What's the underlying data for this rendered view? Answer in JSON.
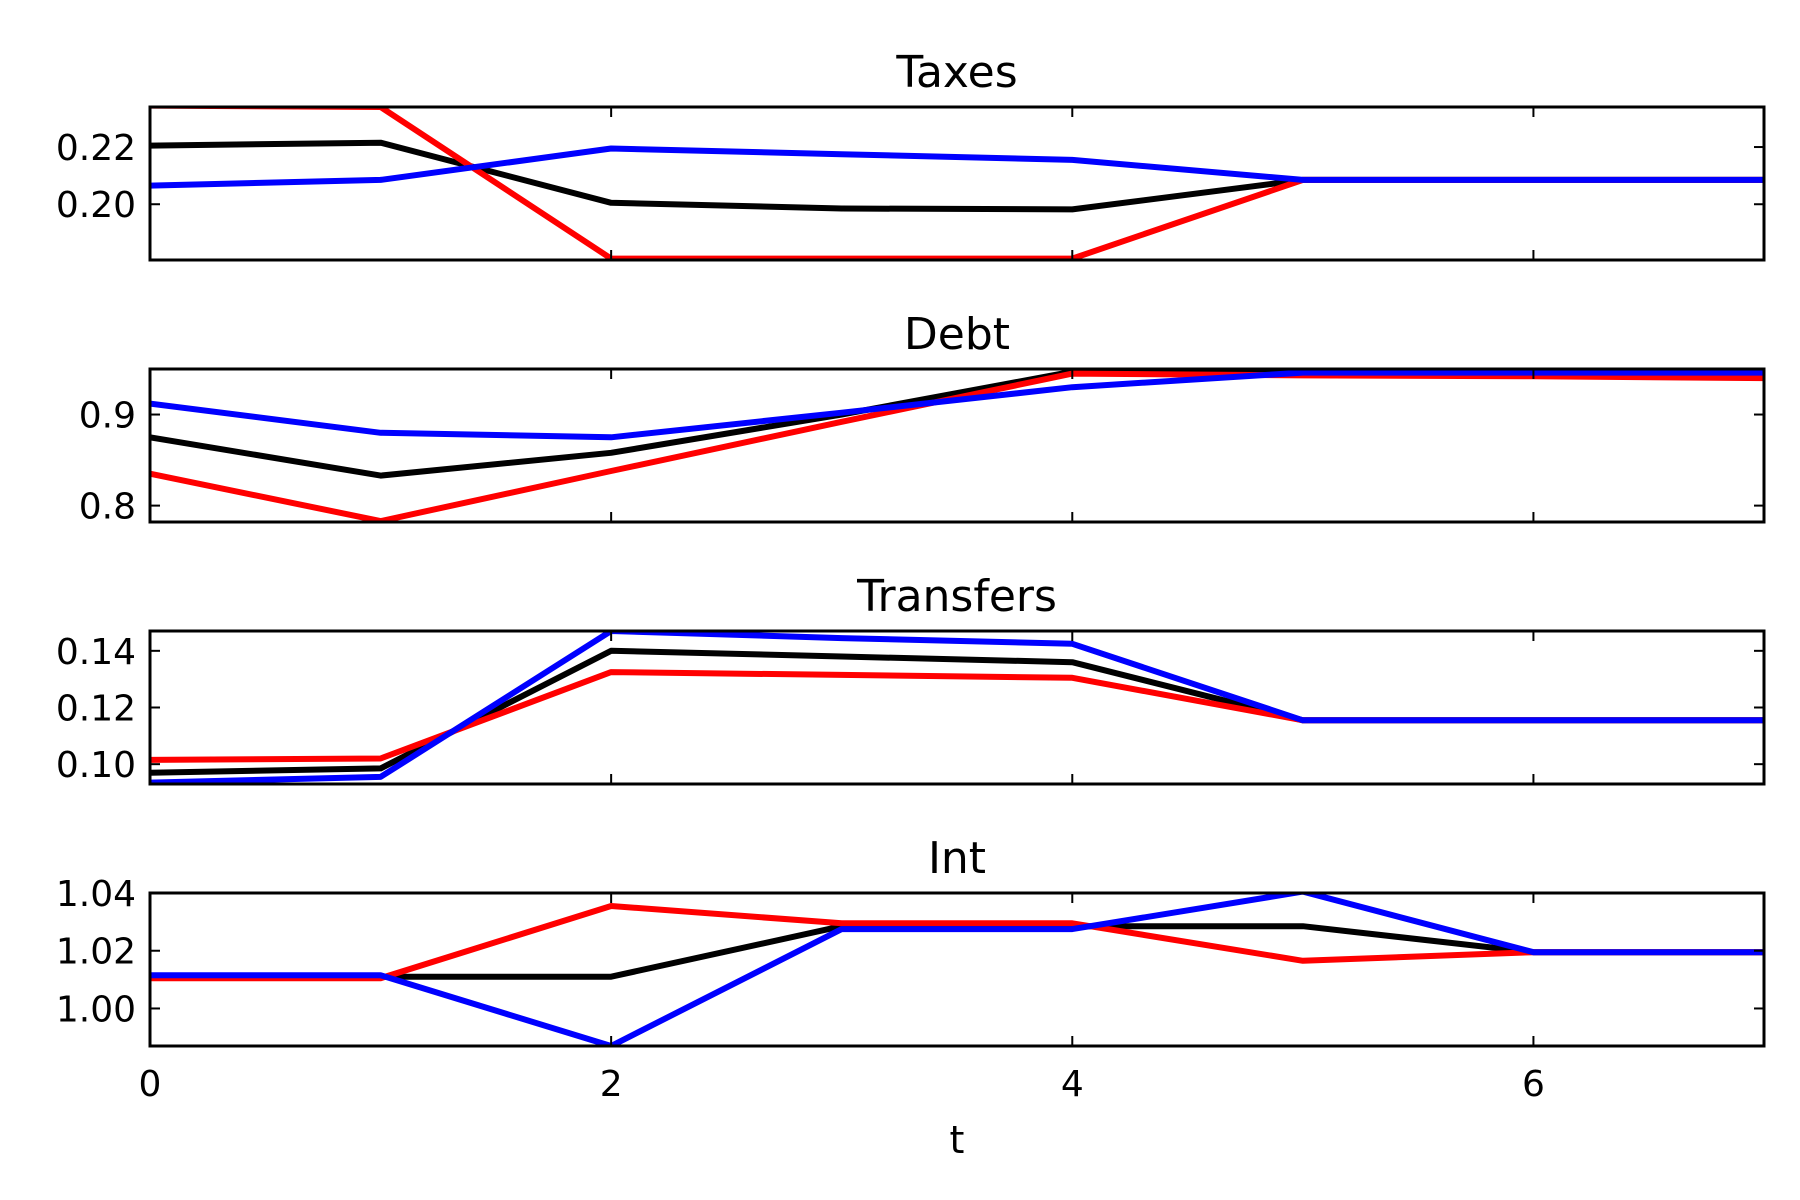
{
  "chart_data": [
    {
      "type": "line",
      "title": "Taxes",
      "x": [
        0,
        1,
        2,
        3,
        4,
        5,
        6,
        7
      ],
      "xlim": [
        0,
        7
      ],
      "ylim": [
        0.1805,
        0.234
      ],
      "yticks": [
        0.2,
        0.22
      ],
      "ytick_labels": [
        "0.20",
        "0.22"
      ],
      "xticks": [
        0,
        2,
        4,
        6
      ],
      "grid": false,
      "series": [
        {
          "color": "#000000",
          "values": [
            0.2205,
            0.2215,
            0.2005,
            0.1985,
            0.1982,
            0.2085,
            0.2085,
            0.2085
          ]
        },
        {
          "color": "#ff0000",
          "values": [
            0.2345,
            0.234,
            0.181,
            0.181,
            0.181,
            0.2085,
            0.2085,
            0.2085
          ]
        },
        {
          "color": "#0000ff",
          "values": [
            0.2065,
            0.2085,
            0.2195,
            0.2175,
            0.2155,
            0.2085,
            0.2085,
            0.2085
          ]
        }
      ]
    },
    {
      "type": "line",
      "title": "Debt",
      "x": [
        0,
        1,
        2,
        3,
        4,
        5,
        6,
        7
      ],
      "xlim": [
        0,
        7
      ],
      "ylim": [
        0.782,
        0.95
      ],
      "yticks": [
        0.8,
        0.9
      ],
      "ytick_labels": [
        "0.8",
        "0.9"
      ],
      "xticks": [
        0,
        2,
        4,
        6
      ],
      "grid": false,
      "series": [
        {
          "color": "#000000",
          "values": [
            0.875,
            0.833,
            0.858,
            0.9,
            0.947,
            0.947,
            0.947,
            0.947
          ]
        },
        {
          "color": "#ff0000",
          "values": [
            0.835,
            0.783,
            0.838,
            0.892,
            0.945,
            0.943,
            0.942,
            0.94
          ]
        },
        {
          "color": "#0000ff",
          "values": [
            0.912,
            0.88,
            0.875,
            0.902,
            0.93,
            0.946,
            0.946,
            0.946
          ]
        }
      ]
    },
    {
      "type": "line",
      "title": "Transfers",
      "x": [
        0,
        1,
        2,
        3,
        4,
        5,
        6,
        7
      ],
      "xlim": [
        0,
        7
      ],
      "ylim": [
        0.093,
        0.147
      ],
      "yticks": [
        0.1,
        0.12,
        0.14
      ],
      "ytick_labels": [
        "0.10",
        "0.12",
        "0.14"
      ],
      "xticks": [
        0,
        2,
        4,
        6
      ],
      "grid": false,
      "series": [
        {
          "color": "#000000",
          "values": [
            0.097,
            0.0985,
            0.14,
            0.138,
            0.136,
            0.1155,
            0.1155,
            0.1155
          ]
        },
        {
          "color": "#ff0000",
          "values": [
            0.1015,
            0.102,
            0.1325,
            0.1315,
            0.1305,
            0.1155,
            0.1155,
            0.1155
          ]
        },
        {
          "color": "#0000ff",
          "values": [
            0.0935,
            0.0955,
            0.147,
            0.1445,
            0.1425,
            0.1155,
            0.1155,
            0.1155
          ]
        }
      ]
    },
    {
      "type": "line",
      "title": "Int",
      "x": [
        0,
        1,
        2,
        3,
        4,
        5,
        6,
        7
      ],
      "xlim": [
        0,
        7
      ],
      "ylim": [
        0.987,
        1.04
      ],
      "yticks": [
        1.0,
        1.02,
        1.04
      ],
      "ytick_labels": [
        "1.00",
        "1.02",
        "1.04"
      ],
      "xticks": [
        0,
        2,
        4,
        6
      ],
      "xtick_labels": [
        "0",
        "2",
        "4",
        "6"
      ],
      "xlabel": "t",
      "grid": false,
      "series": [
        {
          "color": "#000000",
          "values": [
            1.011,
            1.011,
            1.011,
            1.0285,
            1.0285,
            1.0285,
            1.0195,
            1.0195
          ]
        },
        {
          "color": "#ff0000",
          "values": [
            1.0105,
            1.0105,
            1.0355,
            1.0295,
            1.0295,
            1.0165,
            1.0195,
            1.0195
          ]
        },
        {
          "color": "#0000ff",
          "values": [
            1.0115,
            1.0115,
            0.987,
            1.0275,
            1.0275,
            1.0405,
            1.0195,
            1.0195
          ]
        }
      ]
    }
  ]
}
